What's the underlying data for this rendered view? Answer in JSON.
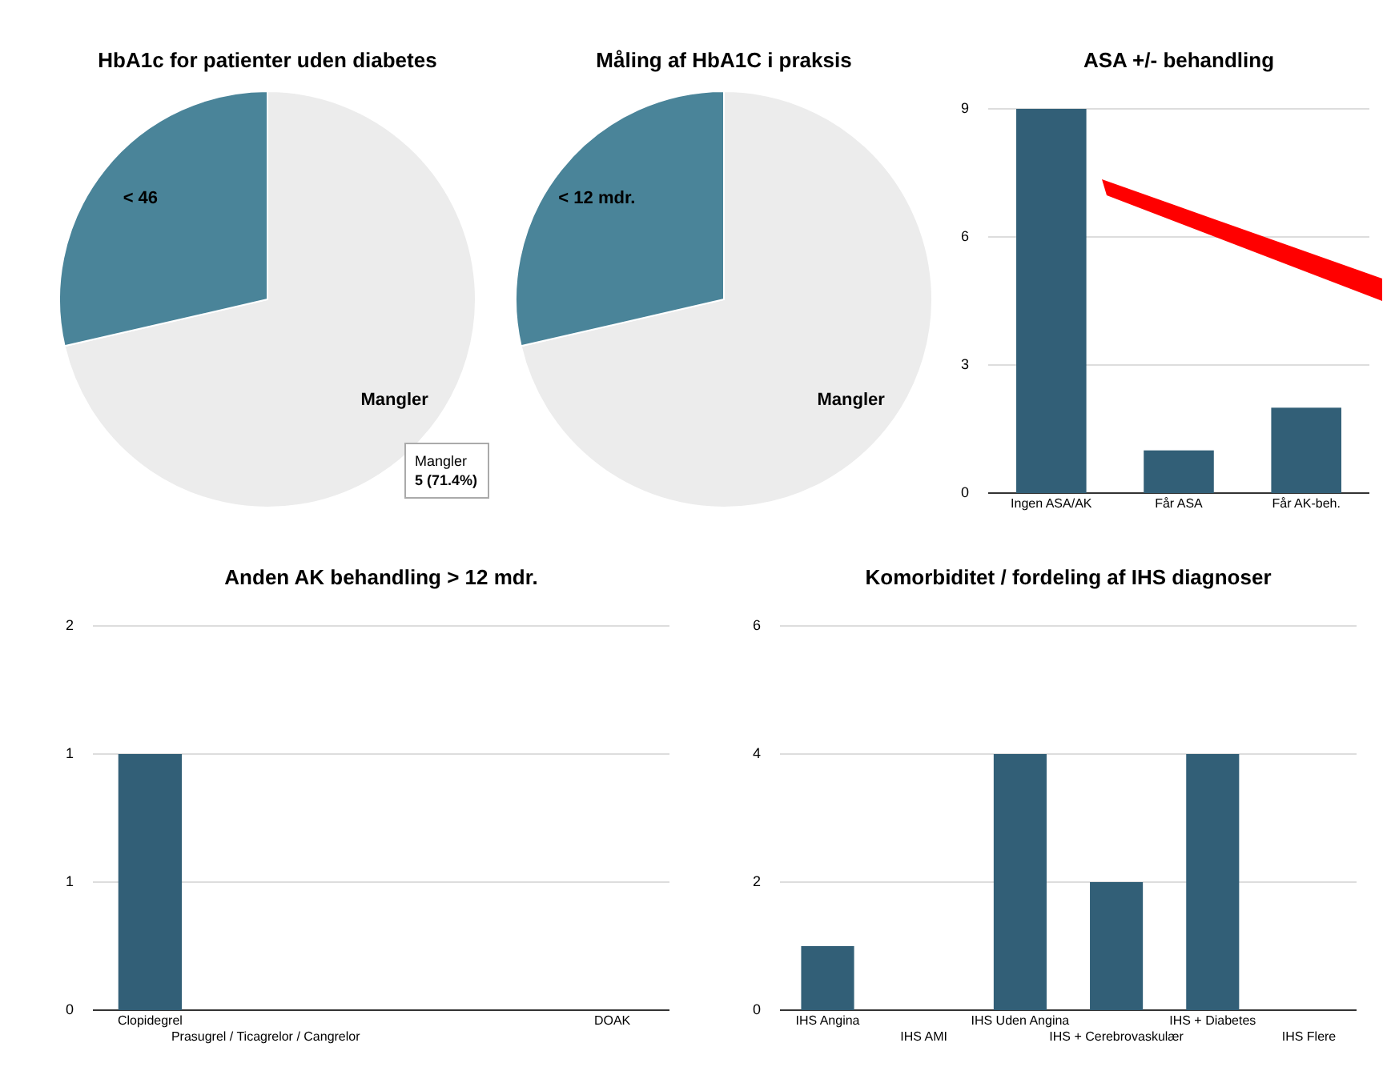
{
  "chart_data": [
    {
      "type": "pie",
      "title": "HbA1c for patienter uden diabetes",
      "categories": [
        "Mangler",
        "< 46"
      ],
      "values": [
        71.4,
        28.6
      ],
      "colors": [
        "#ececec",
        "#4a8499"
      ],
      "annotations": [
        "Mangler\n5 (71.4%)"
      ]
    },
    {
      "type": "pie",
      "title": "Måling af HbA1C i praksis",
      "categories": [
        "Mangler",
        "< 12 mdr."
      ],
      "values": [
        71.4,
        28.6
      ],
      "colors": [
        "#ececec",
        "#4a8499"
      ]
    },
    {
      "type": "bar",
      "title": "ASA +/- behandling",
      "categories": [
        "Ingen ASA/AK",
        "Får ASA",
        "Får AK-beh."
      ],
      "values": [
        9,
        1,
        2
      ],
      "color": "#325f77",
      "ylim": [
        0,
        9
      ],
      "yticks": [
        0,
        3,
        6,
        9
      ],
      "grid": "y"
    },
    {
      "type": "bar",
      "title": "Anden AK behandling > 12 mdr.",
      "categories": [
        "Clopidegrel",
        "Prasugrel / Ticagrelor / Cangrelor",
        null,
        null,
        "DOAK"
      ],
      "values": [
        1,
        0,
        0,
        0,
        0
      ],
      "color": "#325f77",
      "ylim": [
        0,
        1.5
      ],
      "yticks": [
        0,
        {
          "value": 0.5,
          "label": "1"
        },
        {
          "value": 1,
          "label": "1"
        },
        {
          "value": 1.5,
          "label": "2"
        }
      ],
      "grid": "y"
    },
    {
      "type": "bar",
      "title": "Komorbiditet / fordeling af IHS diagnoser",
      "categories": [
        "IHS Angina",
        "IHS AMI",
        "IHS Uden Angina",
        "IHS + Cerebrovaskulær",
        "IHS + Diabetes",
        "IHS Flere"
      ],
      "values": [
        1,
        0,
        4,
        2,
        4,
        0
      ],
      "color": "#325f77",
      "ylim": [
        0,
        6
      ],
      "yticks": [
        0,
        2,
        4,
        6
      ],
      "grid": "y"
    }
  ]
}
